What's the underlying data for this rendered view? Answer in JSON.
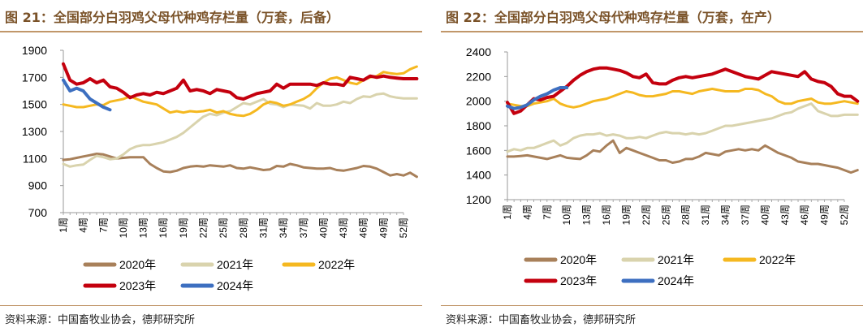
{
  "colors": {
    "2020": "#a8805a",
    "2021": "#d9d3ad",
    "2022": "#f5b820",
    "2023": "#c4000e",
    "2024": "#3d6fc0",
    "title": "#7a5228",
    "rule": "#c1976a"
  },
  "panels": [
    {
      "title": "图 21：全国部分白羽鸡父母代种鸡存栏量（万套，后备）",
      "source": "资料来源：中国畜牧业协会，德邦研究所"
    },
    {
      "title": "图 22：全国部分白羽鸡父母代种鸡存栏量（万套，在产）",
      "source": "资料来源：中国畜牧业协会，德邦研究所"
    }
  ],
  "chart_data": [
    {
      "type": "line",
      "title": "图 21：全国部分白羽鸡父母代种鸡存栏量（万套，后备）",
      "xlabel": "",
      "ylabel": "",
      "ylim": [
        700,
        1900
      ],
      "yticks": [
        700,
        900,
        1100,
        1300,
        1500,
        1700,
        1900
      ],
      "grid": false,
      "legend_position": "bottom",
      "x_tick_labels": [
        "1周",
        "4周",
        "7周",
        "10周",
        "13周",
        "16周",
        "19周",
        "22周",
        "25周",
        "28周",
        "31周",
        "34周",
        "37周",
        "40周",
        "43周",
        "46周",
        "49周",
        "52周"
      ],
      "series": [
        {
          "name": "2020年",
          "key": "2020",
          "values": [
            1090,
            1095,
            1105,
            1115,
            1125,
            1135,
            1130,
            1115,
            1100,
            1105,
            1110,
            1110,
            1110,
            1060,
            1030,
            1005,
            1000,
            1010,
            1030,
            1040,
            1045,
            1040,
            1050,
            1045,
            1040,
            1050,
            1030,
            1025,
            1035,
            1025,
            1015,
            1020,
            1045,
            1040,
            1060,
            1050,
            1035,
            1030,
            1025,
            1025,
            1030,
            1015,
            1010,
            1020,
            1030,
            1045,
            1040,
            1025,
            1000,
            975,
            985,
            975,
            995,
            965
          ]
        },
        {
          "name": "2021年",
          "key": "2021",
          "values": [
            1060,
            1040,
            1050,
            1055,
            1090,
            1120,
            1110,
            1095,
            1100,
            1130,
            1170,
            1190,
            1200,
            1200,
            1210,
            1220,
            1240,
            1260,
            1290,
            1330,
            1370,
            1410,
            1430,
            1420,
            1440,
            1450,
            1480,
            1510,
            1500,
            1520,
            1540,
            1505,
            1500,
            1480,
            1500,
            1495,
            1490,
            1470,
            1510,
            1490,
            1490,
            1500,
            1520,
            1510,
            1540,
            1560,
            1555,
            1575,
            1580,
            1560,
            1550,
            1545,
            1545,
            1545
          ]
        },
        {
          "name": "2022年",
          "key": "2022",
          "values": [
            1500,
            1490,
            1480,
            1480,
            1490,
            1500,
            1495,
            1520,
            1530,
            1540,
            1560,
            1540,
            1520,
            1510,
            1500,
            1470,
            1440,
            1450,
            1440,
            1450,
            1445,
            1450,
            1460,
            1440,
            1450,
            1430,
            1420,
            1415,
            1430,
            1460,
            1500,
            1520,
            1510,
            1490,
            1500,
            1520,
            1540,
            1570,
            1620,
            1660,
            1690,
            1700,
            1680,
            1660,
            1650,
            1680,
            1700,
            1710,
            1740,
            1730,
            1725,
            1730,
            1760,
            1780
          ]
        },
        {
          "name": "2023年",
          "key": "2023",
          "values": [
            1800,
            1680,
            1650,
            1660,
            1690,
            1660,
            1680,
            1630,
            1620,
            1590,
            1550,
            1570,
            1580,
            1570,
            1590,
            1580,
            1600,
            1620,
            1680,
            1600,
            1610,
            1600,
            1580,
            1610,
            1600,
            1590,
            1550,
            1540,
            1560,
            1580,
            1590,
            1600,
            1650,
            1620,
            1650,
            1650,
            1650,
            1650,
            1640,
            1660,
            1650,
            1650,
            1640,
            1700,
            1690,
            1680,
            1710,
            1700,
            1710,
            1700,
            1695,
            1690,
            1690,
            1690
          ]
        },
        {
          "name": "2024年",
          "key": "2024",
          "values": [
            1680,
            1600,
            1620,
            1600,
            1540,
            1510,
            1480,
            1460
          ]
        }
      ]
    },
    {
      "type": "line",
      "title": "图 22：全国部分白羽鸡父母代种鸡存栏量（万套，在产）",
      "xlabel": "",
      "ylabel": "",
      "ylim": [
        1200,
        2400
      ],
      "yticks": [
        1200,
        1400,
        1600,
        1800,
        2000,
        2200,
        2400
      ],
      "grid": false,
      "legend_position": "bottom",
      "x_tick_labels": [
        "1周",
        "4周",
        "7周",
        "10周",
        "13周",
        "16周",
        "19周",
        "22周",
        "25周",
        "28周",
        "31周",
        "34周",
        "37周",
        "40周",
        "43周",
        "46周",
        "49周",
        "52周"
      ],
      "series": [
        {
          "name": "2020年",
          "key": "2020",
          "values": [
            1550,
            1550,
            1555,
            1560,
            1550,
            1540,
            1530,
            1545,
            1560,
            1540,
            1535,
            1530,
            1560,
            1600,
            1590,
            1640,
            1680,
            1580,
            1620,
            1600,
            1580,
            1560,
            1540,
            1520,
            1520,
            1500,
            1510,
            1530,
            1530,
            1550,
            1580,
            1570,
            1560,
            1590,
            1600,
            1610,
            1600,
            1610,
            1600,
            1640,
            1610,
            1580,
            1560,
            1540,
            1510,
            1500,
            1490,
            1490,
            1480,
            1470,
            1460,
            1440,
            1420,
            1440
          ]
        },
        {
          "name": "2021年",
          "key": "2021",
          "values": [
            1590,
            1610,
            1600,
            1620,
            1620,
            1640,
            1660,
            1680,
            1640,
            1660,
            1700,
            1720,
            1730,
            1730,
            1740,
            1720,
            1730,
            1720,
            1700,
            1700,
            1710,
            1700,
            1720,
            1740,
            1750,
            1740,
            1740,
            1730,
            1740,
            1730,
            1740,
            1760,
            1780,
            1800,
            1800,
            1810,
            1820,
            1830,
            1840,
            1850,
            1860,
            1880,
            1900,
            1910,
            1940,
            1960,
            1980,
            1920,
            1900,
            1880,
            1880,
            1890,
            1890,
            1890
          ]
        },
        {
          "name": "2022年",
          "key": "2022",
          "values": [
            1980,
            1970,
            1960,
            1960,
            1980,
            1990,
            2000,
            2020,
            1980,
            1960,
            1950,
            1960,
            1980,
            2000,
            2010,
            2020,
            2040,
            2060,
            2080,
            2070,
            2050,
            2040,
            2040,
            2050,
            2060,
            2080,
            2080,
            2070,
            2060,
            2080,
            2090,
            2100,
            2090,
            2080,
            2080,
            2080,
            2100,
            2100,
            2090,
            2060,
            2040,
            2000,
            1980,
            1980,
            2000,
            2010,
            2020,
            1990,
            1980,
            1980,
            1990,
            2000,
            1990,
            1980
          ]
        },
        {
          "name": "2023年",
          "key": "2023",
          "values": [
            1990,
            1900,
            1920,
            1970,
            2020,
            2010,
            2030,
            2040,
            2080,
            2120,
            2170,
            2210,
            2240,
            2260,
            2270,
            2270,
            2260,
            2250,
            2230,
            2200,
            2190,
            2220,
            2150,
            2140,
            2140,
            2170,
            2190,
            2200,
            2190,
            2200,
            2210,
            2220,
            2240,
            2260,
            2240,
            2220,
            2200,
            2190,
            2180,
            2210,
            2240,
            2230,
            2220,
            2210,
            2200,
            2240,
            2180,
            2160,
            2150,
            2120,
            2060,
            2040,
            2040,
            2000
          ]
        },
        {
          "name": "2024年",
          "key": "2024",
          "values": [
            1960,
            1940,
            1950,
            1970,
            2010,
            2040,
            2060,
            2090,
            2110,
            2110
          ]
        }
      ]
    }
  ]
}
